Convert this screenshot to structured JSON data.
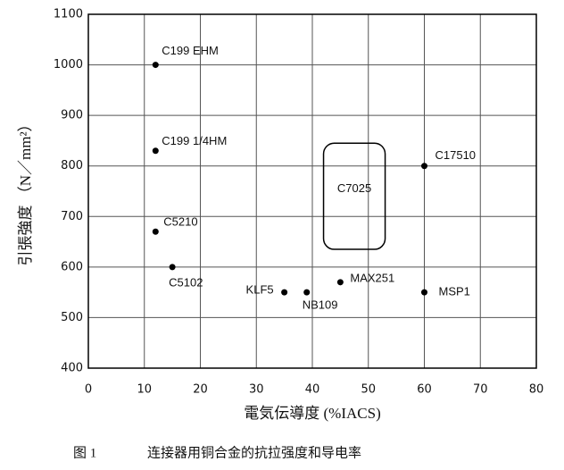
{
  "chart_data": {
    "type": "scatter",
    "x_label": "電気伝導度 (%IACS)",
    "y_label": "引張強度 （N／mm²）",
    "caption_number": "图 1",
    "caption": "连接器用铜合金的抗拉强度和导电率",
    "xlim": [
      0,
      80
    ],
    "xticks": [
      0,
      10,
      20,
      30,
      40,
      50,
      60,
      70,
      80
    ],
    "ylim": [
      400,
      1100
    ],
    "yticks": [
      400,
      500,
      600,
      700,
      800,
      900,
      1000,
      1100
    ],
    "grid": true,
    "color": "#000000",
    "x": [
      12,
      12,
      12,
      15,
      35,
      39,
      45,
      60,
      60
    ],
    "values": [
      1000,
      830,
      670,
      600,
      550,
      550,
      570,
      800,
      550
    ],
    "point_labels": [
      "C199 EHM",
      "C199 1/4HM",
      "C5210",
      "C5102",
      "KLF5",
      "NB109",
      "MAX251",
      "C17510",
      "MSP1"
    ],
    "regions": [
      {
        "label": "C7025",
        "xlim": [
          42,
          53
        ],
        "ylim": [
          635,
          845
        ]
      }
    ]
  }
}
